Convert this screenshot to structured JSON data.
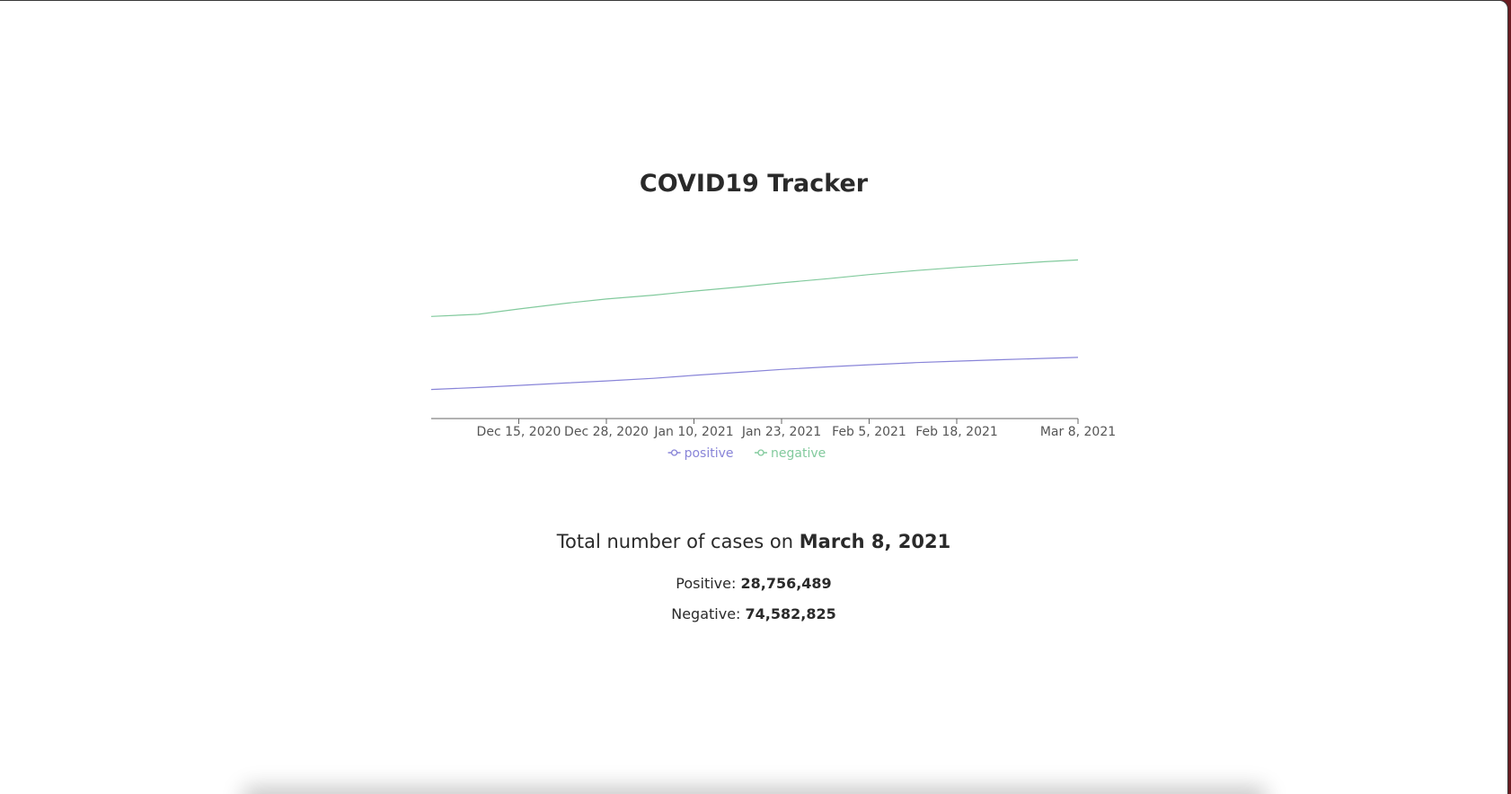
{
  "page": {
    "title": "COVID19 Tracker"
  },
  "chart_data": {
    "type": "line",
    "x": [
      "2020-12-02",
      "2020-12-09",
      "2020-12-15",
      "2020-12-22",
      "2020-12-28",
      "2021-01-04",
      "2021-01-10",
      "2021-01-17",
      "2021-01-23",
      "2021-01-30",
      "2021-02-05",
      "2021-02-12",
      "2021-02-18",
      "2021-02-25",
      "2021-03-03",
      "2021-03-08"
    ],
    "series": [
      {
        "name": "positive",
        "color": "#8884d8",
        "values": [
          13700000,
          14600000,
          15600000,
          16700000,
          17700000,
          18900000,
          20300000,
          21800000,
          23100000,
          24300000,
          25300000,
          26300000,
          27000000,
          27700000,
          28300000,
          28756489
        ]
      },
      {
        "name": "negative",
        "color": "#82ca9d",
        "values": [
          48000000,
          49000000,
          51500000,
          54200000,
          56200000,
          58000000,
          59900000,
          61900000,
          63800000,
          65800000,
          67700000,
          69600000,
          71000000,
          72500000,
          73700000,
          74582825
        ]
      }
    ],
    "x_ticks": [
      "Dec 15, 2020",
      "Dec 28, 2020",
      "Jan 10, 2021",
      "Jan 23, 2021",
      "Feb 5, 2021",
      "Feb 18, 2021",
      "Mar 8, 2021"
    ],
    "x_tick_dates": [
      "2020-12-15",
      "2020-12-28",
      "2021-01-10",
      "2021-01-23",
      "2021-02-05",
      "2021-02-18",
      "2021-03-08"
    ],
    "ylim": [
      0,
      95000000
    ],
    "grid": false,
    "legend": "bottom",
    "xlabel": "",
    "ylabel": ""
  },
  "summary": {
    "heading_prefix": "Total number of cases on",
    "date": "March 8, 2021",
    "positive_label": "Positive:",
    "positive_value": "28,756,489",
    "negative_label": "Negative:",
    "negative_value": "74,582,825"
  }
}
